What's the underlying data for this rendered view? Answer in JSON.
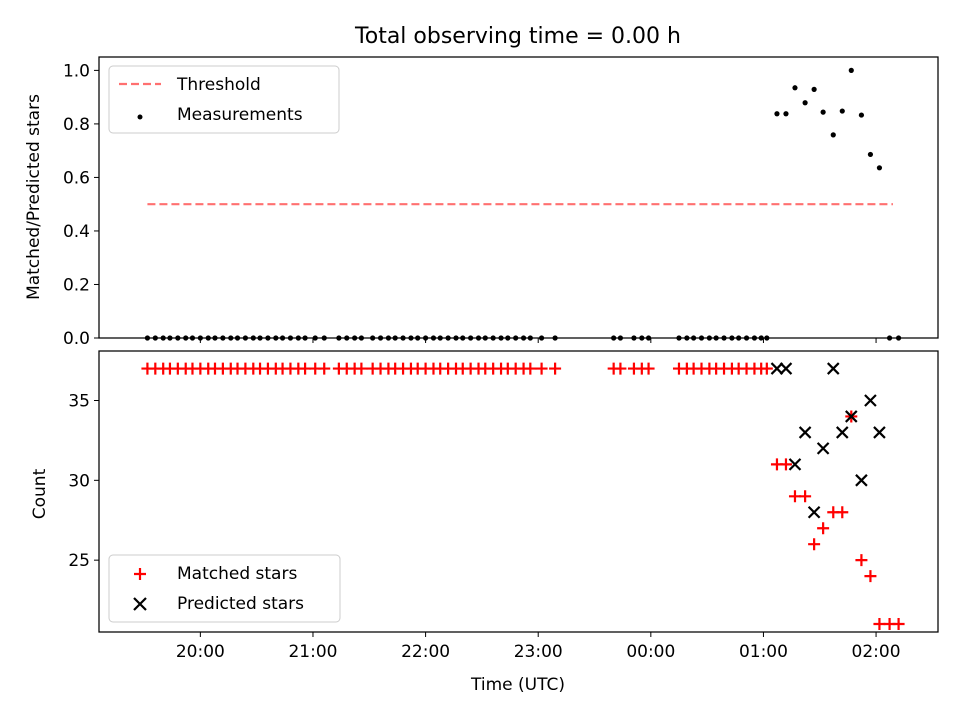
{
  "chart_data": [
    {
      "type": "scatter",
      "title": "Total observing time = 0.00 h",
      "xlabel": "",
      "ylabel": "Matched/Predicted stars",
      "ylim": [
        0,
        1.05
      ],
      "yticks": [
        0.0,
        0.2,
        0.4,
        0.6,
        0.8,
        1.0
      ],
      "ytick_labels": [
        "0.0",
        "0.2",
        "0.4",
        "0.6",
        "0.8",
        "1.0"
      ],
      "xlim_hours": [
        19.1,
        26.55
      ],
      "x_ticks_hours": [
        20,
        21,
        22,
        23,
        24,
        25,
        26
      ],
      "x_tick_labels_shown": false,
      "legend_position": "upper-left",
      "series": [
        {
          "name": "Threshold",
          "kind": "line-dashed",
          "color": "#ff7070",
          "x_hours": [
            19.53,
            26.15
          ],
          "values": [
            0.5,
            0.5
          ]
        },
        {
          "name": "Measurements",
          "kind": "points",
          "color": "#000000",
          "x_hours": [
            19.53,
            19.6,
            19.67,
            19.73,
            19.8,
            19.87,
            19.93,
            20.0,
            20.07,
            20.13,
            20.2,
            20.27,
            20.33,
            20.4,
            20.47,
            20.53,
            20.6,
            20.67,
            20.73,
            20.8,
            20.87,
            20.93,
            21.02,
            21.1,
            21.23,
            21.3,
            21.37,
            21.43,
            21.53,
            21.6,
            21.67,
            21.73,
            21.8,
            21.87,
            21.93,
            22.0,
            22.07,
            22.13,
            22.2,
            22.27,
            22.33,
            22.4,
            22.47,
            22.53,
            22.6,
            22.67,
            22.73,
            22.8,
            22.87,
            22.93,
            23.03,
            23.15,
            23.67,
            23.73,
            23.85,
            23.92,
            23.98,
            24.25,
            24.32,
            24.38,
            24.45,
            24.52,
            24.58,
            24.65,
            24.72,
            24.78,
            24.85,
            24.92,
            24.98,
            25.03,
            25.12,
            25.2,
            25.28,
            25.37,
            25.45,
            25.53,
            25.62,
            25.7,
            25.78,
            25.87,
            25.95,
            26.03,
            26.12,
            26.2
          ],
          "values": [
            0,
            0,
            0,
            0,
            0,
            0,
            0,
            0,
            0,
            0,
            0,
            0,
            0,
            0,
            0,
            0,
            0,
            0,
            0,
            0,
            0,
            0,
            0,
            0,
            0,
            0,
            0,
            0,
            0,
            0,
            0,
            0,
            0,
            0,
            0,
            0,
            0,
            0,
            0,
            0,
            0,
            0,
            0,
            0,
            0,
            0,
            0,
            0,
            0,
            0,
            0,
            0,
            0,
            0,
            0,
            0,
            0,
            0,
            0,
            0,
            0,
            0,
            0,
            0,
            0,
            0,
            0,
            0,
            0,
            0,
            0.838,
            0.838,
            0.935,
            0.879,
            0.929,
            0.844,
            0.759,
            0.848,
            1.0,
            0.833,
            0.686,
            0.636,
            0,
            0
          ]
        }
      ]
    },
    {
      "type": "scatter",
      "title": "",
      "xlabel": "Time (UTC)",
      "ylabel": "Count",
      "ylim": [
        20.5,
        38.1
      ],
      "yticks": [
        25,
        30,
        35
      ],
      "ytick_labels": [
        "25",
        "30",
        "35"
      ],
      "xlim_hours": [
        19.1,
        26.55
      ],
      "x_ticks_hours": [
        20,
        21,
        22,
        23,
        24,
        25,
        26
      ],
      "x_tick_labels": [
        "20:00",
        "21:00",
        "22:00",
        "23:00",
        "00:00",
        "01:00",
        "02:00"
      ],
      "legend_position": "lower-left",
      "series": [
        {
          "name": "Matched stars",
          "kind": "plus",
          "color": "#ff0000",
          "x_hours": [
            19.53,
            19.6,
            19.67,
            19.73,
            19.8,
            19.87,
            19.93,
            20.0,
            20.07,
            20.13,
            20.2,
            20.27,
            20.33,
            20.4,
            20.47,
            20.53,
            20.6,
            20.67,
            20.73,
            20.8,
            20.87,
            20.93,
            21.02,
            21.1,
            21.23,
            21.3,
            21.37,
            21.43,
            21.53,
            21.6,
            21.67,
            21.73,
            21.8,
            21.87,
            21.93,
            22.0,
            22.07,
            22.13,
            22.2,
            22.27,
            22.33,
            22.4,
            22.47,
            22.53,
            22.6,
            22.67,
            22.73,
            22.8,
            22.87,
            22.93,
            23.03,
            23.15,
            23.67,
            23.73,
            23.85,
            23.92,
            23.98,
            24.25,
            24.32,
            24.38,
            24.45,
            24.52,
            24.58,
            24.65,
            24.72,
            24.78,
            24.85,
            24.92,
            24.98,
            25.03,
            25.12,
            25.2,
            25.28,
            25.37,
            25.45,
            25.53,
            25.62,
            25.7,
            25.78,
            25.87,
            25.95,
            26.03,
            26.12,
            26.2
          ],
          "values": [
            37,
            37,
            37,
            37,
            37,
            37,
            37,
            37,
            37,
            37,
            37,
            37,
            37,
            37,
            37,
            37,
            37,
            37,
            37,
            37,
            37,
            37,
            37,
            37,
            37,
            37,
            37,
            37,
            37,
            37,
            37,
            37,
            37,
            37,
            37,
            37,
            37,
            37,
            37,
            37,
            37,
            37,
            37,
            37,
            37,
            37,
            37,
            37,
            37,
            37,
            37,
            37,
            37,
            37,
            37,
            37,
            37,
            37,
            37,
            37,
            37,
            37,
            37,
            37,
            37,
            37,
            37,
            37,
            37,
            37,
            31,
            31,
            29,
            29,
            26,
            27,
            28,
            28,
            34,
            25,
            24,
            21,
            21,
            21
          ]
        },
        {
          "name": "Predicted stars",
          "kind": "x",
          "color": "#000000",
          "x_hours": [
            25.12,
            25.2,
            25.28,
            25.37,
            25.45,
            25.53,
            25.62,
            25.7,
            25.78,
            25.87,
            25.95,
            26.03
          ],
          "values": [
            37,
            37,
            31,
            33,
            28,
            32,
            37,
            33,
            34,
            30,
            35,
            33
          ]
        }
      ]
    }
  ]
}
